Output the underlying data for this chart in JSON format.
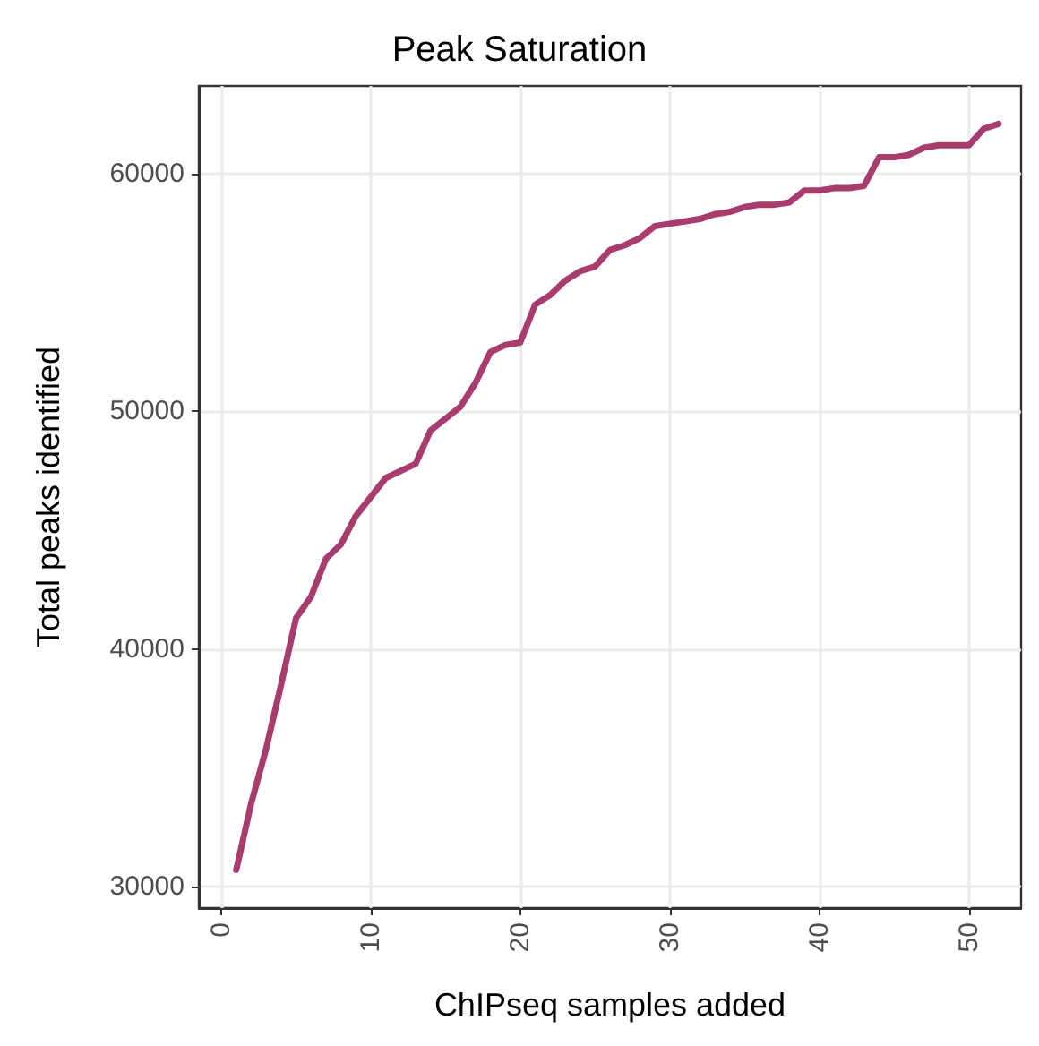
{
  "chart_data": {
    "type": "line",
    "title": "Peak Saturation",
    "xlabel": "ChIPseq samples added",
    "ylabel": "Total peaks identified",
    "x": [
      1,
      2,
      3,
      4,
      5,
      6,
      7,
      8,
      9,
      10,
      11,
      12,
      13,
      14,
      15,
      16,
      17,
      18,
      19,
      20,
      21,
      22,
      23,
      24,
      25,
      26,
      27,
      28,
      29,
      30,
      31,
      32,
      33,
      34,
      35,
      36,
      37,
      38,
      39,
      40,
      41,
      42,
      43,
      44,
      45,
      46,
      47,
      48,
      49,
      50,
      51,
      52
    ],
    "series": [
      {
        "color": "#a83c6e",
        "values": [
          30700,
          33500,
          35800,
          38500,
          41300,
          42200,
          43800,
          44400,
          45600,
          46400,
          47200,
          47500,
          47800,
          49200,
          49700,
          50200,
          51200,
          52500,
          52800,
          52900,
          54500,
          54900,
          55500,
          55900,
          56100,
          56800,
          57000,
          57300,
          57800,
          57900,
          58000,
          58100,
          58300,
          58400,
          58600,
          58700,
          58700,
          58800,
          59300,
          59300,
          59400,
          59400,
          59500,
          60700,
          60700,
          60800,
          61100,
          61200,
          61200,
          61200,
          61900,
          62100
        ]
      }
    ],
    "xlim": [
      -1.5,
      53.5
    ],
    "xticks": [
      0,
      10,
      20,
      30,
      40,
      50
    ],
    "ylim": [
      29100,
      63700
    ],
    "yticks": [
      30000,
      40000,
      50000,
      60000
    ],
    "grid": true,
    "line_style": "solid",
    "marker": "none"
  }
}
